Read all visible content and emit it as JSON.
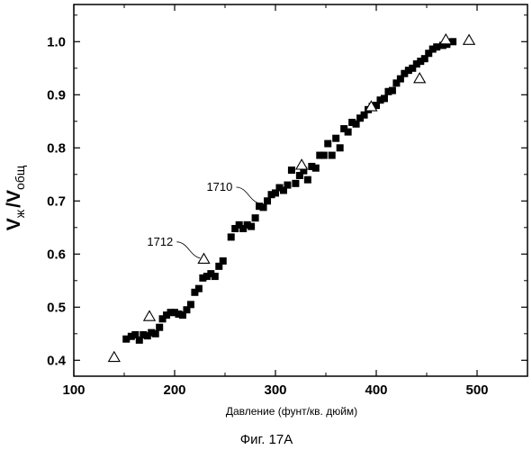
{
  "chart_data": {
    "type": "scatter",
    "xlabel": "Давление (фунт/кв. дюйм)",
    "ylabel": {
      "v1": "V",
      "sub1": "ж",
      "sep": "/V",
      "sub2": "общ"
    },
    "caption": "Фиг. 17А",
    "xlim": [
      100,
      550
    ],
    "ylim": [
      0.37,
      1.07
    ],
    "xticks": [
      100,
      200,
      300,
      400,
      500
    ],
    "yticks": [
      0.4,
      0.5,
      0.6,
      0.7,
      0.8,
      0.9,
      1.0
    ],
    "xtick_labels": [
      "100",
      "200",
      "300",
      "400",
      "500"
    ],
    "ytick_labels": [
      "0.4",
      "0.5",
      "0.6",
      "0.7",
      "0.8",
      "0.9",
      "1.0"
    ],
    "grid": false,
    "series": [
      {
        "marker": "square-filled",
        "points": [
          [
            152,
            0.44
          ],
          [
            157,
            0.445
          ],
          [
            161,
            0.448
          ],
          [
            165,
            0.438
          ],
          [
            169,
            0.448
          ],
          [
            173,
            0.446
          ],
          [
            177,
            0.452
          ],
          [
            181,
            0.45
          ],
          [
            185,
            0.462
          ],
          [
            188,
            0.478
          ],
          [
            192,
            0.485
          ],
          [
            196,
            0.49
          ],
          [
            200,
            0.49
          ],
          [
            204,
            0.487
          ],
          [
            208,
            0.485
          ],
          [
            212,
            0.495
          ],
          [
            216,
            0.505
          ],
          [
            220,
            0.528
          ],
          [
            224,
            0.535
          ],
          [
            228,
            0.555
          ],
          [
            232,
            0.558
          ],
          [
            236,
            0.563
          ],
          [
            240,
            0.558
          ],
          [
            244,
            0.577
          ],
          [
            248,
            0.587
          ],
          [
            256,
            0.632
          ],
          [
            260,
            0.648
          ],
          [
            264,
            0.655
          ],
          [
            268,
            0.648
          ],
          [
            272,
            0.655
          ],
          [
            276,
            0.652
          ],
          [
            280,
            0.668
          ],
          [
            284,
            0.69
          ],
          [
            288,
            0.688
          ],
          [
            292,
            0.7
          ],
          [
            296,
            0.712
          ],
          [
            300,
            0.715
          ],
          [
            304,
            0.725
          ],
          [
            308,
            0.72
          ],
          [
            312,
            0.73
          ],
          [
            316,
            0.758
          ],
          [
            320,
            0.733
          ],
          [
            324,
            0.748
          ],
          [
            328,
            0.757
          ],
          [
            332,
            0.74
          ],
          [
            336,
            0.765
          ],
          [
            340,
            0.762
          ],
          [
            344,
            0.786
          ],
          [
            348,
            0.786
          ],
          [
            352,
            0.808
          ],
          [
            356,
            0.786
          ],
          [
            360,
            0.818
          ],
          [
            364,
            0.8
          ],
          [
            368,
            0.836
          ],
          [
            372,
            0.83
          ],
          [
            376,
            0.848
          ],
          [
            380,
            0.845
          ],
          [
            384,
            0.856
          ],
          [
            388,
            0.862
          ],
          [
            392,
            0.872
          ],
          [
            396,
            0.878
          ],
          [
            400,
            0.88
          ],
          [
            404,
            0.89
          ],
          [
            408,
            0.893
          ],
          [
            412,
            0.906
          ],
          [
            416,
            0.908
          ],
          [
            420,
            0.922
          ],
          [
            424,
            0.93
          ],
          [
            428,
            0.94
          ],
          [
            432,
            0.946
          ],
          [
            436,
            0.95
          ],
          [
            440,
            0.958
          ],
          [
            444,
            0.963
          ],
          [
            448,
            0.968
          ],
          [
            452,
            0.978
          ],
          [
            456,
            0.986
          ],
          [
            460,
            0.99
          ],
          [
            466,
            0.993
          ],
          [
            470,
            0.995
          ],
          [
            476,
            1.0
          ]
        ]
      },
      {
        "marker": "triangle-open",
        "points": [
          [
            140,
            0.405
          ],
          [
            175,
            0.482
          ],
          [
            229,
            0.59
          ],
          [
            326,
            0.767
          ],
          [
            395,
            0.877
          ],
          [
            443,
            0.93
          ],
          [
            469,
            1.003
          ],
          [
            492,
            1.002
          ]
        ]
      }
    ],
    "annotations": [
      {
        "text": "1710",
        "point": [
          287,
          0.692
        ]
      },
      {
        "text": "1712",
        "point": [
          228,
          0.589
        ]
      }
    ]
  }
}
